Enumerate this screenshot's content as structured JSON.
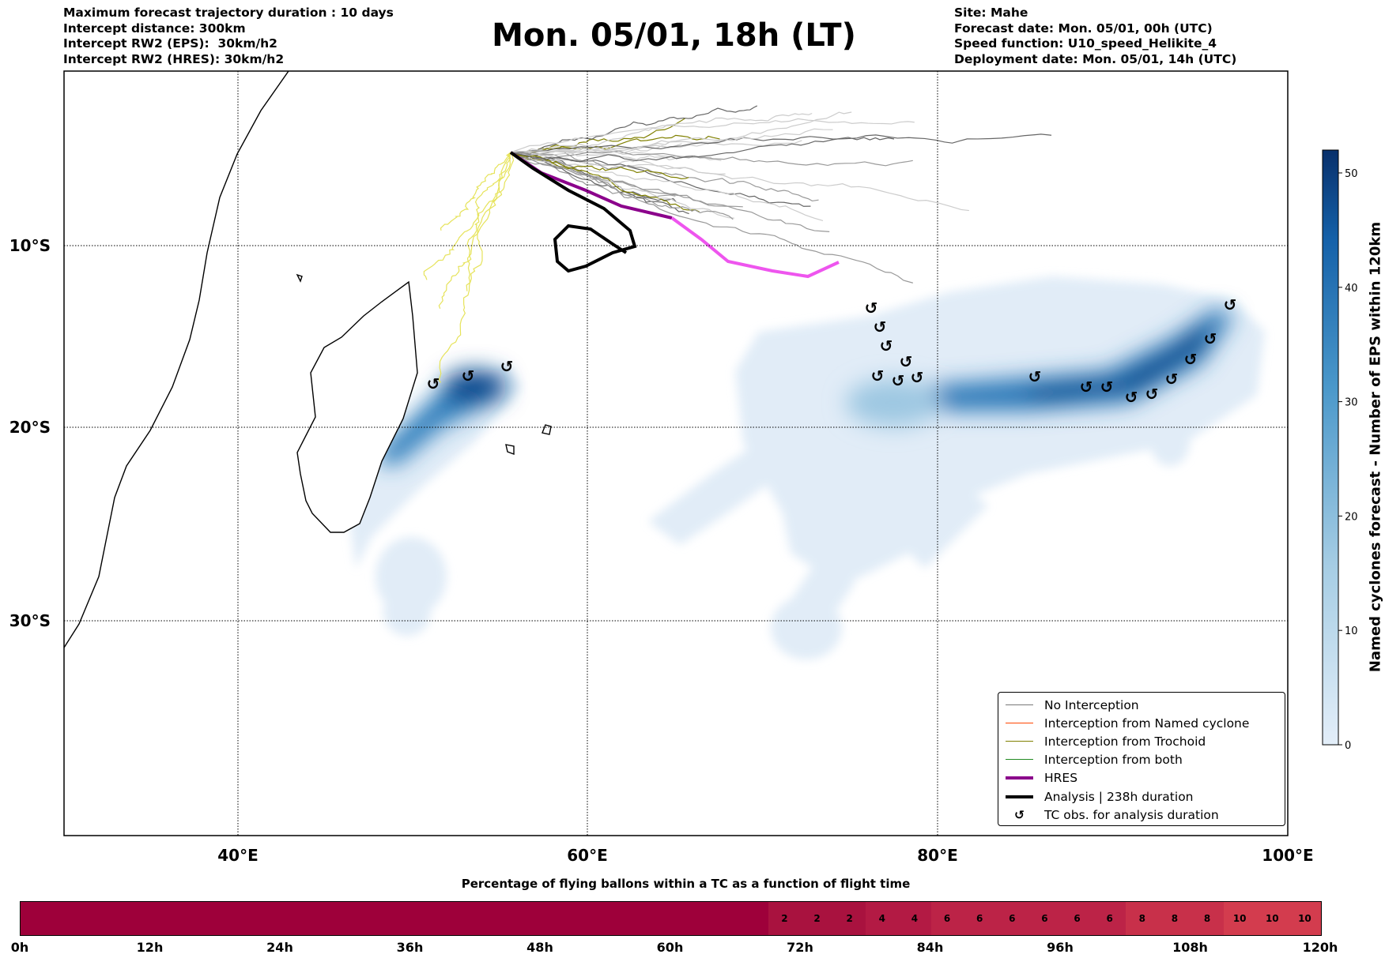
{
  "header_left": [
    "Maximum forecast trajectory duration : 10 days",
    "Intercept distance: 300km",
    "Intercept RW2 (EPS):  30km/h2",
    "Intercept RW2 (HRES): 30km/h2"
  ],
  "title": "Mon. 05/01, 18h (LT)",
  "header_right": [
    "Site: Mahe",
    "Forecast date: Mon. 05/01, 00h (UTC)",
    "Speed function: U10_speed_Helikite_4",
    "Deployment date: Mon. 05/01, 14h (UTC)"
  ],
  "colors": {
    "hres_start": "#8b008b",
    "hres_end": "#ee55ee",
    "analysis": "#000000",
    "no_interception": "#777777",
    "named": "#ff4500",
    "trochoid": "#808000",
    "both": "#228b22",
    "heat": "#08306b"
  },
  "chart_data": [
    {
      "type": "map",
      "lon_ticks": [
        "40°E",
        "60°E",
        "80°E",
        "100°E"
      ],
      "lat_ticks": [
        "10°S",
        "20°S",
        "30°S"
      ],
      "lon_range": [
        30,
        100
      ],
      "colorbar": {
        "label": "Named cyclones forecast - Number of EPS within 120km",
        "ticks": [
          "0",
          "10",
          "20",
          "30",
          "40",
          "50"
        ],
        "range": [
          0,
          52
        ]
      },
      "legend": [
        "No Interception",
        "Interception from Named cyclone",
        "Interception from Trochoid",
        "Interception from both",
        "HRES",
        "Analysis | 238h duration",
        "TC obs. for analysis duration"
      ],
      "tc_marker": "↺"
    },
    {
      "type": "heatmap",
      "title": "Percentage of flying ballons within a TC as a function of flight time",
      "x_ticks": [
        "0h",
        "12h",
        "24h",
        "36h",
        "48h",
        "60h",
        "72h",
        "84h",
        "96h",
        "108h",
        "120h"
      ],
      "bin_hours": 3,
      "values": [
        0,
        0,
        0,
        0,
        0,
        0,
        0,
        0,
        0,
        0,
        0,
        0,
        0,
        0,
        0,
        0,
        0,
        0,
        0,
        0,
        0,
        0,
        0,
        2,
        2,
        2,
        4,
        4,
        6,
        6,
        6,
        6,
        6,
        6,
        8,
        8,
        8,
        10,
        10,
        10
      ]
    }
  ]
}
